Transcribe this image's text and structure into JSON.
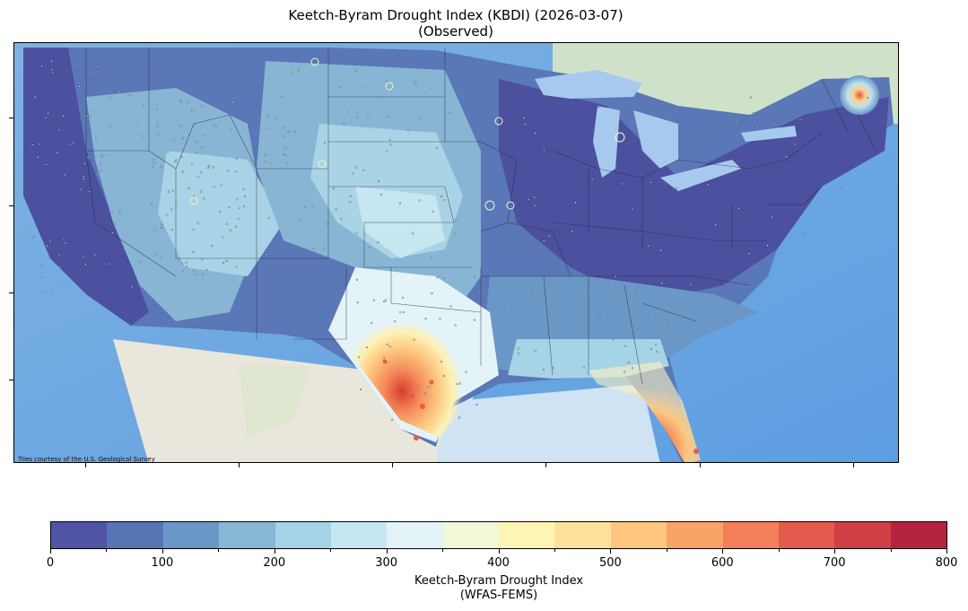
{
  "title_line1": "Keetch-Byram Drought Index (KBDI) (2026-03-07)",
  "title_line2": "(Observed)",
  "attribution": "Tiles courtesy of the U.S. Geological Survey",
  "colorbar": {
    "label_line1": "Keetch-Byram Drought Index",
    "label_line2": "(WFAS-FEMS)",
    "ticks": [
      "0",
      "100",
      "200",
      "300",
      "400",
      "500",
      "600",
      "700",
      "800"
    ],
    "range": [
      0,
      800
    ],
    "step": 50,
    "colors": [
      "#4f54a4",
      "#5775b5",
      "#6a97c5",
      "#88b6d5",
      "#a6d3e6",
      "#c6e6f1",
      "#e4f3f8",
      "#f2f8d8",
      "#fdf4b6",
      "#fde19b",
      "#fcc67f",
      "#f9a467",
      "#f27f5a",
      "#e35b4c",
      "#d03f44",
      "#b3253f"
    ]
  }
}
